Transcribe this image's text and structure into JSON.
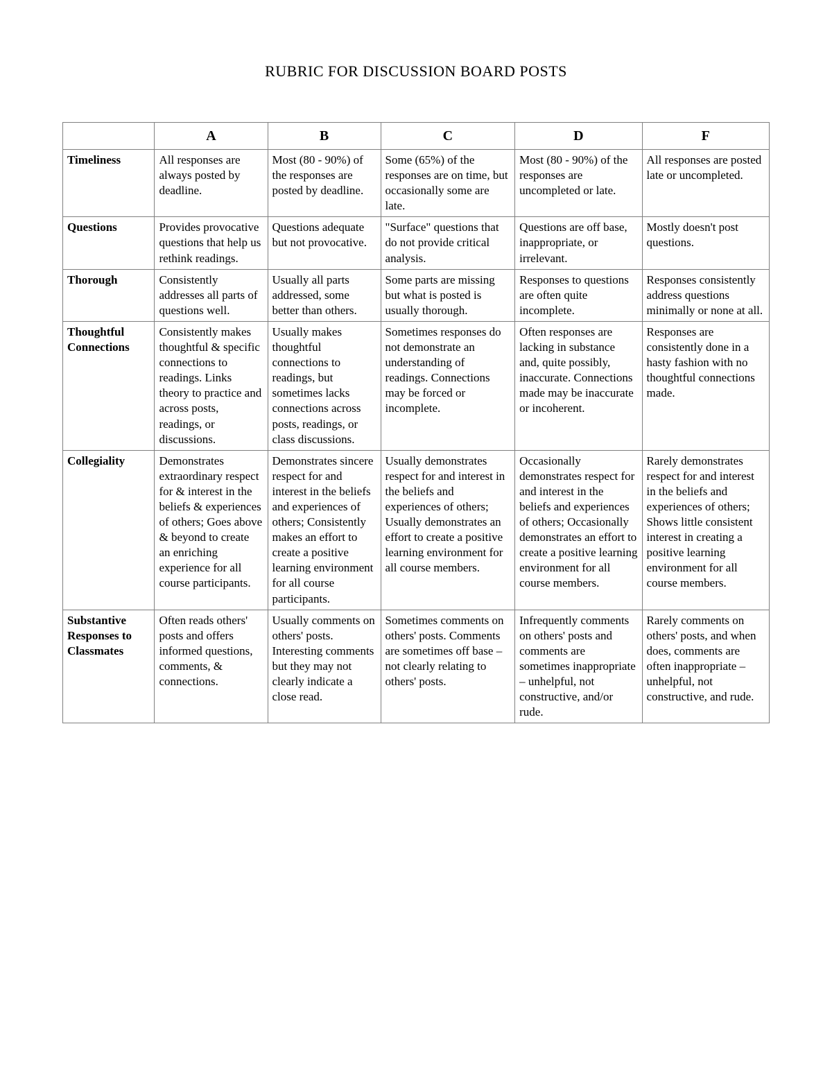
{
  "document": {
    "title": "RUBRIC FOR DISCUSSION BOARD POSTS",
    "title_fontsize": 22,
    "body_fontsize": 17,
    "border_color": "#808080",
    "background_color": "#ffffff",
    "text_color": "#000000"
  },
  "table": {
    "type": "table",
    "columns": [
      "",
      "A",
      "B",
      "C",
      "D",
      "F"
    ],
    "column_widths_pct": [
      13,
      16,
      16,
      19,
      18,
      18
    ],
    "rows": [
      {
        "label": "Timeliness",
        "cells": [
          "All responses are always posted by deadline.",
          "Most (80 - 90%) of the responses are posted by deadline.",
          "Some (65%) of the responses are on time, but occasionally some are late.",
          "Most (80 - 90%) of the responses are uncompleted or late.",
          "All responses are posted late or uncompleted."
        ]
      },
      {
        "label": "Questions",
        "cells": [
          "Provides provocative questions that help us rethink readings.",
          "Questions adequate but not provocative.",
          "\"Surface\" questions that do not provide critical analysis.",
          "Questions are off base, inappropriate, or irrelevant.",
          "Mostly doesn't post questions."
        ]
      },
      {
        "label": "Thorough",
        "cells": [
          "Consistently addresses all parts of questions well.",
          "Usually all parts addressed, some better than others.",
          "Some parts are missing but what is posted is usually thorough.",
          "Responses to questions are often quite incomplete.",
          "Responses consistently address questions minimally or none at all."
        ]
      },
      {
        "label": "Thoughtful Connections",
        "cells": [
          "Consistently makes thoughtful & specific connections to readings. Links theory to practice and across posts, readings, or discussions.",
          "Usually makes thoughtful connections to readings, but sometimes lacks connections across posts, readings, or class discussions.",
          "Sometimes responses do not demonstrate an understanding of readings. Connections may be forced or incomplete.",
          "Often responses are lacking in substance and, quite possibly, inaccurate. Connections made may be inaccurate or incoherent.",
          "Responses are consistently done in a hasty fashion with no thoughtful connections made."
        ]
      },
      {
        "label": "Collegiality",
        "cells": [
          "Demonstrates extraordinary respect for & interest in the beliefs & experiences of others; Goes above & beyond to create an enriching experience for all course participants.",
          "Demonstrates sincere respect for and interest in the beliefs and experiences of others; Consistently makes an effort to create a positive learning environment for all course participants.",
          "Usually demonstrates respect for and interest in the beliefs and experiences of others; Usually demonstrates an effort to create a positive learning environment for all course members.",
          "Occasionally demonstrates respect for and interest in the beliefs and experiences of others; Occasionally demonstrates an effort to create a positive learning environment for all course members.",
          "Rarely demonstrates respect for and interest in the beliefs and experiences of others; Shows little consistent interest in creating a positive learning environment for all course members."
        ]
      },
      {
        "label": "Substantive Responses to Classmates",
        "cells": [
          "Often reads others' posts and offers informed questions, comments, & connections.",
          "Usually comments on others' posts. Interesting comments but they may not clearly indicate a close read.",
          "Sometimes comments on others' posts. Comments are sometimes off base – not clearly relating to others' posts.",
          "Infrequently comments on others' posts and comments are sometimes inappropriate – unhelpful, not constructive, and/or rude.",
          "Rarely comments on others' posts, and when does, comments are often inappropriate – unhelpful, not constructive, and rude."
        ]
      }
    ]
  }
}
